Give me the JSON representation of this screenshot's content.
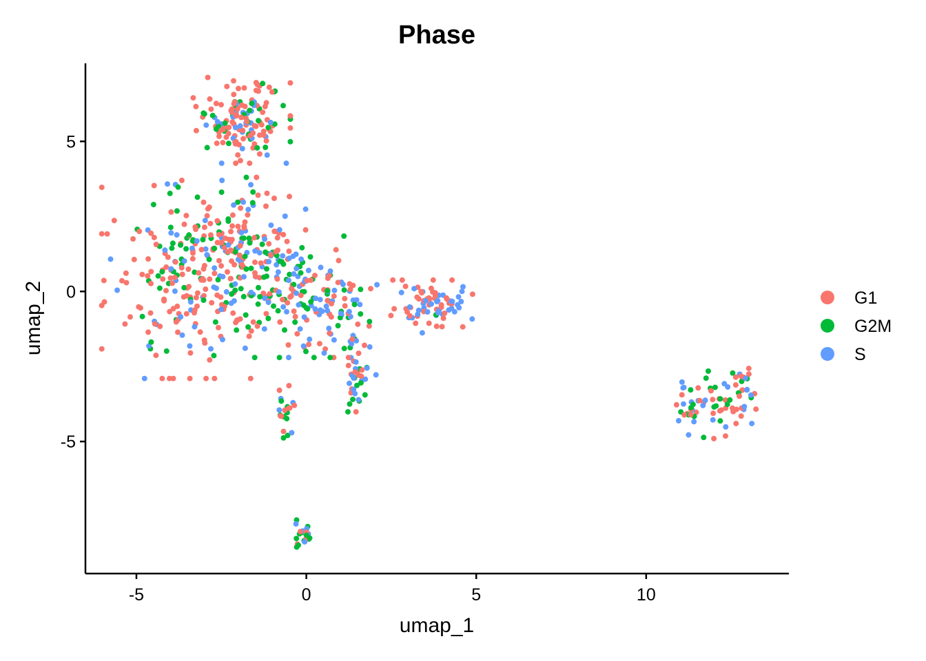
{
  "chart_data": {
    "type": "scatter",
    "title": "Phase",
    "xlabel": "umap_1",
    "ylabel": "umap_2",
    "xlim": [
      -6.5,
      14.2
    ],
    "ylim": [
      -9.4,
      7.6
    ],
    "xticks": [
      -5,
      0,
      5,
      10
    ],
    "yticks": [
      5,
      0,
      -5
    ],
    "legend": {
      "placement": "right",
      "title": ""
    },
    "series": [
      {
        "name": "G1",
        "color": "#F8766D"
      },
      {
        "name": "G2M",
        "color": "#00BA38"
      },
      {
        "name": "S",
        "color": "#619CFF"
      }
    ],
    "clusters": [
      {
        "center": [
          -1.9,
          5.7
        ],
        "spread": [
          0.65,
          0.65
        ],
        "count": 150,
        "mix": [
          0.55,
          0.25,
          0.2
        ]
      },
      {
        "center": [
          -3.6,
          0.4
        ],
        "spread": [
          1.1,
          1.5
        ],
        "count": 230,
        "mix": [
          0.6,
          0.22,
          0.18
        ]
      },
      {
        "center": [
          -2.0,
          1.6
        ],
        "spread": [
          0.9,
          1.0
        ],
        "count": 120,
        "mix": [
          0.5,
          0.25,
          0.25
        ]
      },
      {
        "center": [
          -0.5,
          0.0
        ],
        "spread": [
          0.9,
          1.0
        ],
        "count": 120,
        "mix": [
          0.35,
          0.3,
          0.35
        ]
      },
      {
        "center": [
          0.8,
          -0.6
        ],
        "spread": [
          0.6,
          0.8
        ],
        "count": 70,
        "mix": [
          0.3,
          0.25,
          0.45
        ]
      },
      {
        "center": [
          1.5,
          -2.8
        ],
        "spread": [
          0.25,
          0.55
        ],
        "count": 40,
        "mix": [
          0.35,
          0.3,
          0.35
        ]
      },
      {
        "center": [
          -0.6,
          -4.0
        ],
        "spread": [
          0.12,
          0.4
        ],
        "count": 22,
        "mix": [
          0.35,
          0.4,
          0.25
        ]
      },
      {
        "center": [
          -0.1,
          -8.1
        ],
        "spread": [
          0.12,
          0.22
        ],
        "count": 22,
        "mix": [
          0.25,
          0.45,
          0.3
        ]
      },
      {
        "center": [
          3.7,
          -0.5
        ],
        "spread": [
          0.55,
          0.4
        ],
        "count": 80,
        "mix": [
          0.55,
          0.05,
          0.4
        ]
      },
      {
        "center": [
          12.1,
          -3.7
        ],
        "spread": [
          0.45,
          0.55
        ],
        "count": 40,
        "mix": [
          0.4,
          0.3,
          0.3
        ]
      },
      {
        "center": [
          12.9,
          -3.3
        ],
        "spread": [
          0.2,
          0.5
        ],
        "count": 25,
        "mix": [
          0.55,
          0.2,
          0.25
        ]
      },
      {
        "center": [
          11.2,
          -3.9
        ],
        "spread": [
          0.25,
          0.4
        ],
        "count": 20,
        "mix": [
          0.3,
          0.3,
          0.4
        ]
      }
    ]
  }
}
